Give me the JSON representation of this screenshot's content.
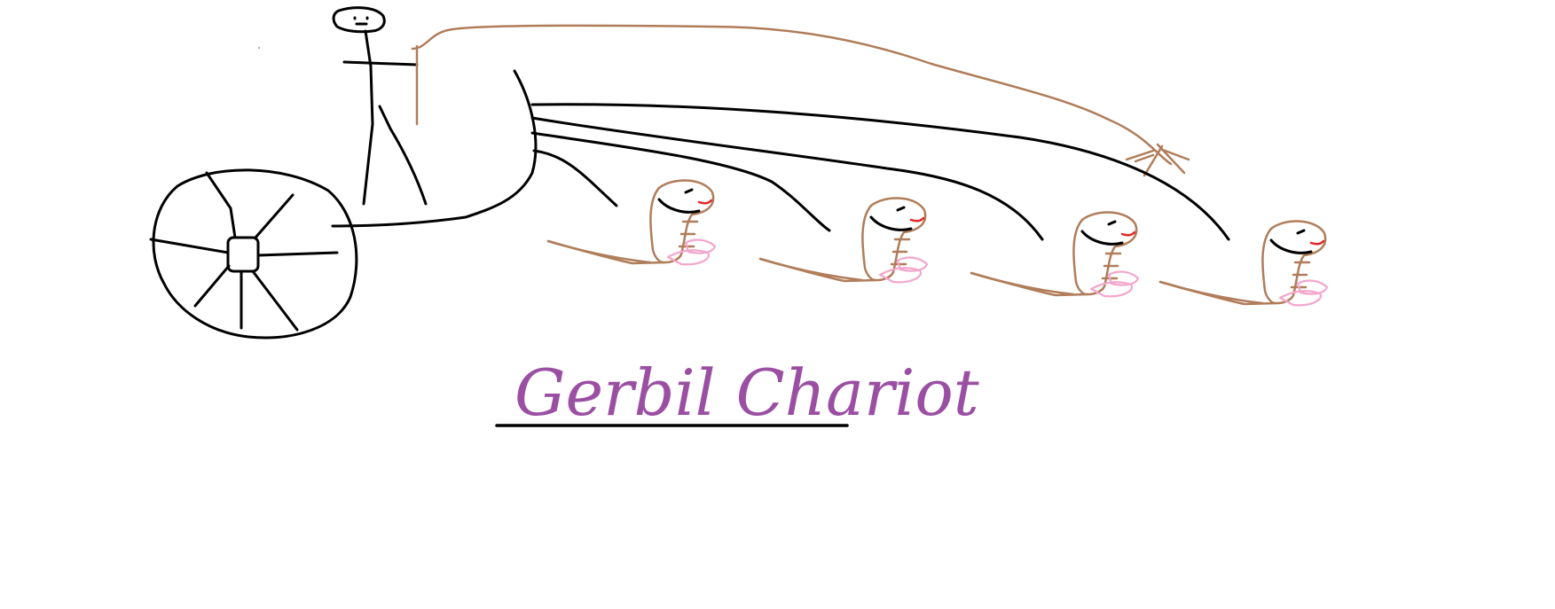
{
  "title": "Gerbil Chariot",
  "colors": {
    "background": "#ffffff",
    "ink": "#000000",
    "brown": "#b07d5a",
    "pink": "#f3a6cc",
    "title": "#9b4fa3",
    "red": "#e32626"
  },
  "icons": [
    "stick-figure-driver",
    "chariot-wheel",
    "chariot-body",
    "whip",
    "gerbil"
  ]
}
